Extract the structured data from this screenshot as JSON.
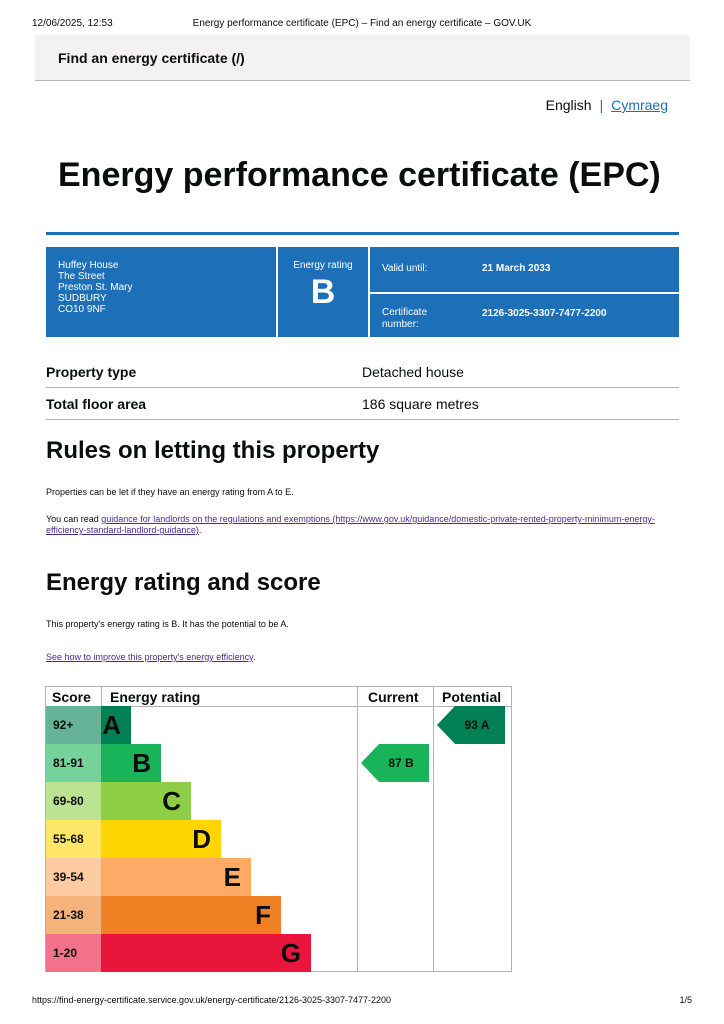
{
  "print_header": {
    "date": "12/06/2025, 12:53",
    "title": "Energy performance certificate (EPC) – Find an energy certificate – GOV.UK"
  },
  "service": {
    "name": "Find an energy certificate",
    "suffix": "(/)"
  },
  "language": {
    "current": "English",
    "other": "Cymraeg"
  },
  "page_title": "Energy performance certificate (EPC)",
  "certificate": {
    "address": [
      "Huffey House",
      "The Street",
      "Preston St. Mary",
      "SUDBURY",
      "CO10 9NF"
    ],
    "energy_rating_label": "Energy rating",
    "energy_rating": "B",
    "valid_until_label": "Valid until:",
    "valid_until": "21 March 2033",
    "cert_number_label": "Certificate number:",
    "cert_number": "2126-3025-3307-7477-2200"
  },
  "summary": [
    {
      "label": "Property type",
      "value": "Detached house"
    },
    {
      "label": "Total floor area",
      "value": "186 square metres"
    }
  ],
  "letting": {
    "heading": "Rules on letting this property",
    "p1": "Properties can be let if they have an energy rating from A to E.",
    "p2_prefix": "You can read ",
    "p2_link": "guidance for landlords on the regulations and exemptions (https://www.gov.uk/guidance/domestic-private-rented-property-minimum-energy-efficiency-standard-landlord-guidance)",
    "p2_suffix": "."
  },
  "rating_section": {
    "heading": "Energy rating and score",
    "p1": "This property's energy rating is B. It has the potential to be A.",
    "link": "See how to improve this property's energy efficiency",
    "link_suffix": "."
  },
  "epc_chart": {
    "headers": {
      "score": "Score",
      "rating": "Energy rating",
      "current": "Current",
      "potential": "Potential"
    },
    "bands": [
      {
        "score": "92+",
        "letter": "A",
        "color": "#008054",
        "score_bg": "#66b398"
      },
      {
        "score": "81-91",
        "letter": "B",
        "color": "#19b459",
        "score_bg": "#75d29b"
      },
      {
        "score": "69-80",
        "letter": "C",
        "color": "#8dce46",
        "score_bg": "#bbe290"
      },
      {
        "score": "55-68",
        "letter": "D",
        "color": "#ffd500",
        "score_bg": "#ffe666"
      },
      {
        "score": "39-54",
        "letter": "E",
        "color": "#fcaa65",
        "score_bg": "#fdcca3"
      },
      {
        "score": "21-38",
        "letter": "F",
        "color": "#ef8023",
        "score_bg": "#f5b37b"
      },
      {
        "score": "1-20",
        "letter": "G",
        "color": "#e9153b",
        "score_bg": "#f27389"
      }
    ],
    "current": {
      "text": "87  B",
      "band": "B",
      "color": "#19b459"
    },
    "potential": {
      "text": "93  A",
      "band": "A",
      "color": "#008054"
    }
  },
  "print_footer": {
    "url": "https://find-energy-certificate.service.gov.uk/energy-certificate/2126-3025-3307-7477-2200",
    "page": "1/5"
  }
}
